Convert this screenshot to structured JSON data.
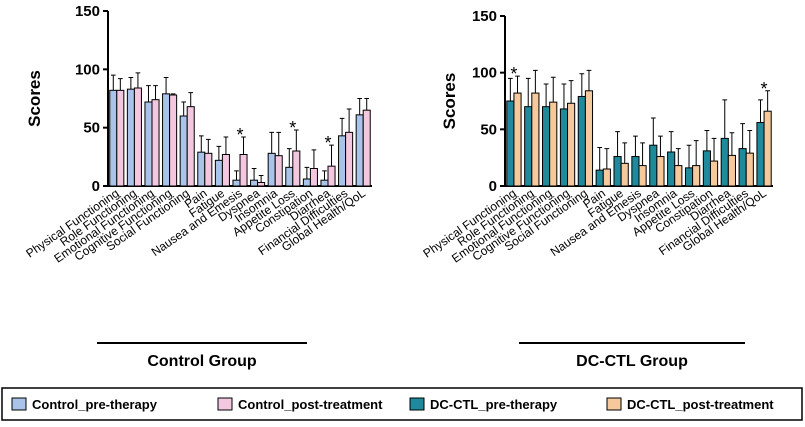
{
  "chart_data": [
    {
      "type": "bar",
      "group_label": "Control Group",
      "ylabel": "Scores",
      "categories": [
        "Physical Functioning",
        "Role Functioning",
        "Emotional Functioning",
        "Cognitive Functioning",
        "Social Functioning",
        "Pain",
        "Fatigue",
        "Nausea and Emesis",
        "Dyspnea",
        "Insomnia",
        "Appetite Loss",
        "Constipation",
        "Diarrhea",
        "Financial Difficulties",
        "Global Health/QoL"
      ],
      "series": [
        {
          "name": "Control_pre-therapy",
          "color": "#a9c4e8",
          "values": [
            82,
            83,
            72,
            79,
            60,
            29,
            22,
            5,
            5,
            28,
            16,
            6,
            5,
            43,
            61
          ],
          "errors": [
            13,
            10,
            14,
            14,
            12,
            14,
            12,
            8,
            10,
            18,
            16,
            10,
            8,
            15,
            14
          ]
        },
        {
          "name": "Control_post-treatment",
          "color": "#f4c7e0",
          "values": [
            82,
            84,
            74,
            78,
            68,
            28,
            27,
            27,
            3,
            26,
            30,
            15,
            17,
            46,
            65
          ],
          "errors": [
            10,
            13,
            12,
            1,
            12,
            12,
            15,
            15,
            6,
            20,
            18,
            16,
            18,
            20,
            10
          ]
        }
      ],
      "annotations": [
        {
          "text": "*",
          "category": "Nausea and Emesis"
        },
        {
          "text": "*",
          "category": "Appetite Loss"
        },
        {
          "text": "*",
          "category": "Diarrhea"
        }
      ],
      "ylim": [
        0,
        150
      ],
      "yticks": [
        0,
        50,
        100,
        150
      ]
    },
    {
      "type": "bar",
      "group_label": "DC-CTL Group",
      "ylabel": "Scores",
      "categories": [
        "Physical Functioning",
        "Role Functioning",
        "Emotional Functioning",
        "Cognitive Functioning",
        "Social Functioning",
        "Pain",
        "Fatigue",
        "Nausea and Emesis",
        "Dyspnea",
        "Insomnia",
        "Appetite Loss",
        "Constipation",
        "Diarrhea",
        "Financial Difficulties",
        "Global Health/QoL"
      ],
      "series": [
        {
          "name": "DC-CTL_pre-therapy",
          "color": "#1e8a9c",
          "values": [
            75,
            70,
            70,
            68,
            79,
            14,
            26,
            26,
            36,
            30,
            16,
            31,
            42,
            33,
            56
          ],
          "errors": [
            20,
            25,
            20,
            22,
            20,
            20,
            22,
            18,
            24,
            18,
            20,
            18,
            34,
            22,
            20
          ]
        },
        {
          "name": "DC-CTL_post-treatment",
          "color": "#f5c99b",
          "values": [
            82,
            82,
            74,
            73,
            84,
            15,
            20,
            18,
            26,
            18,
            18,
            22,
            27,
            29,
            66
          ],
          "errors": [
            15,
            20,
            22,
            20,
            18,
            18,
            18,
            20,
            18,
            15,
            22,
            20,
            20,
            20,
            18
          ]
        }
      ],
      "annotations": [
        {
          "text": "*",
          "category": "Physical Functioning"
        },
        {
          "text": "*",
          "category": "Global Health/QoL"
        }
      ],
      "ylim": [
        0,
        150
      ],
      "yticks": [
        0,
        50,
        100,
        150
      ]
    }
  ]
}
